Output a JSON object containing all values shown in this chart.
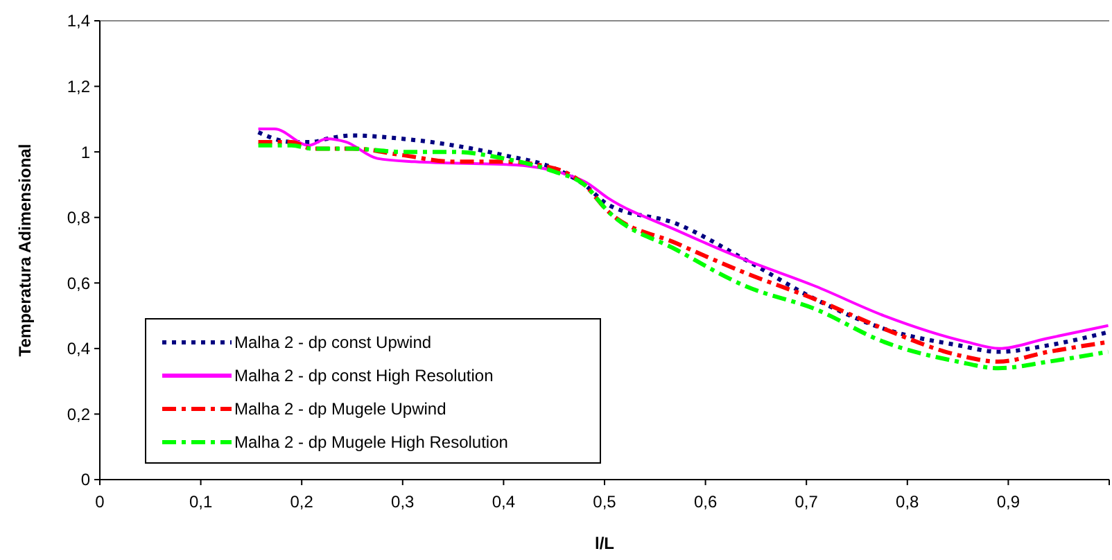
{
  "chart_data": {
    "type": "line",
    "xlabel": "l/L",
    "ylabel": "Temperatura Adimensional",
    "xlim": [
      0,
      1
    ],
    "ylim": [
      0,
      1.4
    ],
    "xticks": [
      0,
      {
        "value": 0.1,
        "label": "0,1"
      },
      {
        "value": 0.2,
        "label": "0,2"
      },
      {
        "value": 0.3,
        "label": "0,3"
      },
      {
        "value": 0.4,
        "label": "0,4"
      },
      {
        "value": 0.5,
        "label": "0,5"
      },
      {
        "value": 0.6,
        "label": "0,6"
      },
      {
        "value": 0.7,
        "label": "0,7"
      },
      {
        "value": 0.8,
        "label": "0,8"
      },
      {
        "value": 0.9,
        "label": "0,9"
      },
      {
        "value": 1,
        "label": null
      }
    ],
    "yticks": [
      0,
      {
        "value": 0.2,
        "label": "0,2"
      },
      {
        "value": 0.4,
        "label": "0,4"
      },
      {
        "value": 0.6,
        "label": "0,6"
      },
      {
        "value": 0.8,
        "label": "0,8"
      },
      1,
      {
        "value": 1.2,
        "label": "1,2"
      },
      {
        "value": 1.4,
        "label": "1,4"
      }
    ],
    "grid": false,
    "legend": "bottom left",
    "series": [
      {
        "name": "Malha 2 - dp const Upwind",
        "color": "#000080",
        "line_style": "dotted",
        "x": [
          0.157,
          0.19,
          0.21,
          0.225,
          0.25,
          0.3,
          0.35,
          0.4,
          0.45,
          0.48,
          0.503,
          0.572,
          0.64,
          0.709,
          0.777,
          0.85,
          0.89,
          0.94,
          0.999
        ],
        "values": [
          1.06,
          1.03,
          1.03,
          1.04,
          1.05,
          1.04,
          1.02,
          0.99,
          0.95,
          0.9,
          0.84,
          0.78,
          0.67,
          0.55,
          0.46,
          0.41,
          0.39,
          0.41,
          0.45
        ]
      },
      {
        "name": "Malha 2 - dp const High Resolution",
        "color": "#ff00ff",
        "line_style": "solid",
        "x": [
          0.157,
          0.173,
          0.207,
          0.225,
          0.244,
          0.275,
          0.312,
          0.412,
          0.48,
          0.503,
          0.572,
          0.64,
          0.709,
          0.777,
          0.859,
          0.891,
          0.937,
          0.999
        ],
        "values": [
          1.07,
          1.07,
          1.02,
          1.04,
          1.03,
          0.98,
          0.97,
          0.96,
          0.91,
          0.86,
          0.76,
          0.67,
          0.59,
          0.5,
          0.42,
          0.4,
          0.43,
          0.47
        ]
      },
      {
        "name": "Malha 2 - dp Mugele Upwind",
        "color": "#ff0000",
        "line_style": "dashed",
        "x": [
          0.157,
          0.19,
          0.21,
          0.25,
          0.3,
          0.35,
          0.4,
          0.45,
          0.48,
          0.503,
          0.572,
          0.64,
          0.709,
          0.777,
          0.85,
          0.89,
          0.94,
          0.999
        ],
        "values": [
          1.03,
          1.03,
          1.01,
          1.01,
          0.99,
          0.97,
          0.97,
          0.95,
          0.9,
          0.82,
          0.72,
          0.63,
          0.55,
          0.46,
          0.38,
          0.36,
          0.39,
          0.42
        ]
      },
      {
        "name": "Malha 2 - dp Mugele High Resolution",
        "color": "#00ff00",
        "line_style": "dashed",
        "x": [
          0.157,
          0.19,
          0.21,
          0.25,
          0.3,
          0.35,
          0.4,
          0.45,
          0.48,
          0.503,
          0.572,
          0.64,
          0.709,
          0.777,
          0.85,
          0.89,
          0.94,
          0.999
        ],
        "values": [
          1.02,
          1.02,
          1.01,
          1.01,
          1,
          1,
          0.98,
          0.94,
          0.9,
          0.82,
          0.7,
          0.59,
          0.52,
          0.42,
          0.36,
          0.34,
          0.36,
          0.39
        ]
      }
    ]
  }
}
